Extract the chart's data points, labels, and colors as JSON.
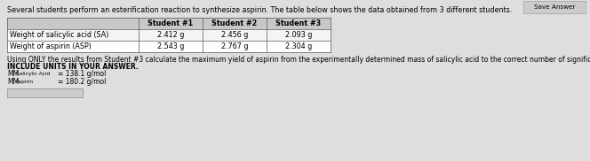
{
  "title_text": "Several students perform an esterification reaction to synthesize aspirin. The table below shows the data obtained from 3 different students.",
  "table_headers": [
    "",
    "Student #1",
    "Student #2",
    "Student #3"
  ],
  "table_rows": [
    [
      "Weight of salicylic acid (SA)",
      "2.412 g",
      "2.456 g",
      "2.093 g"
    ],
    [
      "Weight of aspirin (ASP)",
      "2.543 g",
      "2.767 g",
      "2.304 g"
    ]
  ],
  "question_line1": "Using ONLY the results from Student #3 calculate the maximum yield of aspirin from the experimentally determined mass of salicylic acid to the correct number of significant figures. DO NOT",
  "question_line2": "INCLUDE UNITS IN YOUR ANSWER.",
  "mm_sa_val": "= 138.1 g/mol",
  "mm_asp_val": "= 180.2 g/mol",
  "bg_color": "#dedede",
  "table_bg": "#ffffff",
  "header_bg": "#c8c8c8",
  "save_answer_label": "Save Answer",
  "title_fontsize": 5.8,
  "body_fontsize": 5.5,
  "table_fontsize": 5.8,
  "sub_fontsize": 4.2
}
